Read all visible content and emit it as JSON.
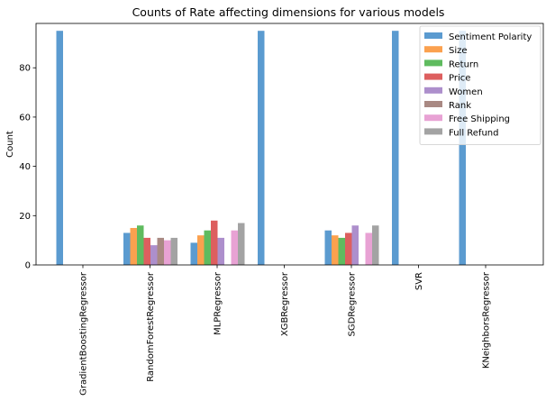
{
  "chart_data": {
    "type": "bar",
    "title": "Counts of Rate affecting dimensions for various models",
    "xlabel": "",
    "ylabel": "Count",
    "ylim": [
      0,
      98
    ],
    "yticks": [
      0,
      20,
      40,
      60,
      80
    ],
    "grid": false,
    "legend_position": "top-right",
    "categories": [
      "GradientBoostingRegressor",
      "RandomForestRegressor",
      "MLPRegressor",
      "XGBRegressor",
      "SGDRegressor",
      "SVR",
      "KNeighborsRegressor"
    ],
    "series": [
      {
        "name": "Sentiment Polarity",
        "color": "#5b9bd0",
        "values": [
          95,
          13,
          9,
          95,
          14,
          95,
          95
        ]
      },
      {
        "name": "Size",
        "color": "#fba14f",
        "values": [
          0,
          15,
          12,
          0,
          12,
          0,
          0
        ]
      },
      {
        "name": "Return",
        "color": "#5fbb5f",
        "values": [
          0,
          16,
          14,
          0,
          11,
          0,
          0
        ]
      },
      {
        "name": "Price",
        "color": "#dd5f5f",
        "values": [
          0,
          11,
          18,
          0,
          13,
          0,
          0
        ]
      },
      {
        "name": "Women",
        "color": "#ad8fcc",
        "values": [
          0,
          8,
          11,
          0,
          16,
          0,
          0
        ]
      },
      {
        "name": "Rank",
        "color": "#a98983",
        "values": [
          0,
          11,
          0,
          0,
          0,
          0,
          0
        ]
      },
      {
        "name": "Free Shipping",
        "color": "#e8a2d4",
        "values": [
          0,
          10,
          14,
          0,
          13,
          0,
          0
        ]
      },
      {
        "name": "Full Refund",
        "color": "#a3a3a3",
        "values": [
          0,
          11,
          17,
          0,
          16,
          0,
          0
        ]
      }
    ]
  }
}
